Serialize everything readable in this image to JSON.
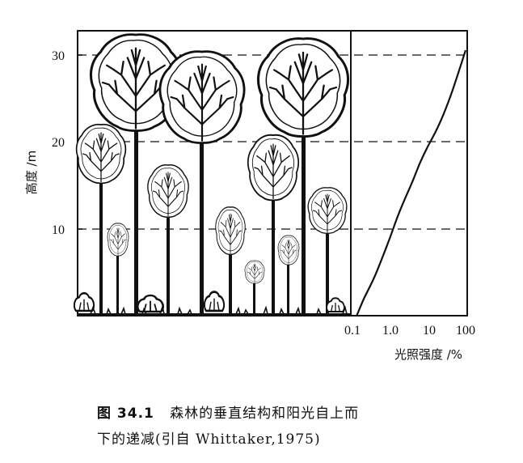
{
  "y_axis": {
    "title": "高度 /m",
    "ticks": [
      "30",
      "20",
      "10"
    ]
  },
  "x_axis": {
    "title": "光照强度 /%",
    "ticks": [
      "0.1",
      "1.0",
      "10",
      "100"
    ]
  },
  "caption": {
    "number": "图 34.1",
    "line1": "森林的垂直结构和阳光自上而",
    "line2": "下的递减(引自 Whittaker,1975)"
  },
  "chart_data": {
    "type": "line",
    "xlabel": "光照强度 /%",
    "ylabel": "高度 /m",
    "x_scale": "log",
    "xlim": [
      0.1,
      100
    ],
    "ylim": [
      0,
      33
    ],
    "x": [
      0.13,
      0.2,
      0.35,
      0.6,
      1.0,
      1.6,
      2.5,
      4,
      6,
      10,
      18,
      35,
      60,
      100
    ],
    "y": [
      0,
      2,
      4,
      6.5,
      9,
      11.5,
      13.5,
      15.5,
      17.5,
      19.5,
      21.5,
      24.5,
      27.5,
      30.5
    ]
  }
}
